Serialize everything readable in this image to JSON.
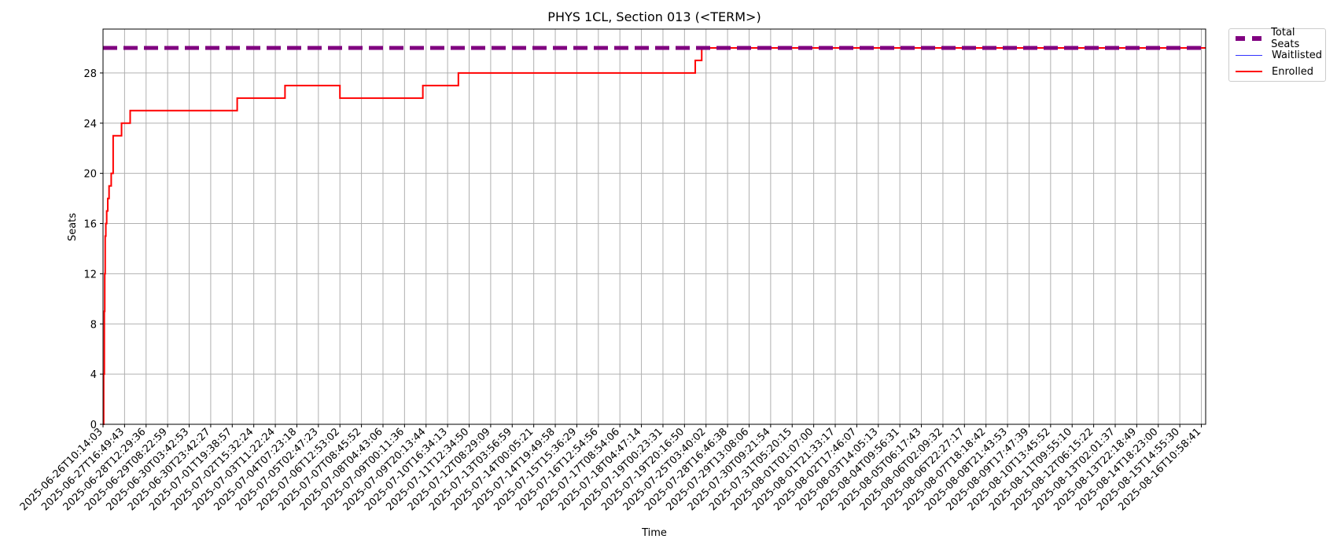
{
  "chart_data": {
    "type": "line",
    "title": "PHYS 1CL, Section 013 (<TERM>)",
    "xlabel": "Time",
    "ylabel": "Seats",
    "ylim": [
      0,
      31.5
    ],
    "yticks": [
      0,
      4,
      8,
      12,
      16,
      20,
      24,
      28
    ],
    "grid": true,
    "legend_position": "outside top-right",
    "x_ticks": [
      "2025-06-26T10:14:03",
      "2025-06-27T16:49:43",
      "2025-06-28T12:29:36",
      "2025-06-29T08:22:59",
      "2025-06-30T03:42:53",
      "2025-06-30T23:42:27",
      "2025-07-01T19:38:57",
      "2025-07-02T15:32:24",
      "2025-07-03T11:22:24",
      "2025-07-04T07:23:18",
      "2025-07-05T02:47:23",
      "2025-07-06T12:53:02",
      "2025-07-07T08:45:52",
      "2025-07-08T04:43:06",
      "2025-07-09T00:11:36",
      "2025-07-09T20:13:44",
      "2025-07-10T16:34:13",
      "2025-07-11T12:34:50",
      "2025-07-12T08:29:09",
      "2025-07-13T03:56:59",
      "2025-07-14T00:05:21",
      "2025-07-14T19:49:58",
      "2025-07-15T15:36:29",
      "2025-07-16T12:54:56",
      "2025-07-17T08:54:06",
      "2025-07-18T04:47:14",
      "2025-07-19T00:23:31",
      "2025-07-19T20:16:50",
      "2025-07-25T03:40:02",
      "2025-07-28T16:46:38",
      "2025-07-29T13:08:06",
      "2025-07-30T09:21:54",
      "2025-07-31T05:20:15",
      "2025-08-01T01:07:00",
      "2025-08-01T21:33:17",
      "2025-08-02T17:46:07",
      "2025-08-03T14:05:13",
      "2025-08-04T09:56:31",
      "2025-08-05T06:17:43",
      "2025-08-06T02:09:32",
      "2025-08-06T22:27:17",
      "2025-08-07T18:18:42",
      "2025-08-08T21:43:53",
      "2025-08-09T17:47:39",
      "2025-08-10T13:45:52",
      "2025-08-11T09:55:10",
      "2025-08-12T06:15:22",
      "2025-08-13T02:01:37",
      "2025-08-13T22:18:49",
      "2025-08-14T18:23:00",
      "2025-08-15T14:55:30",
      "2025-08-16T10:58:41"
    ],
    "series": [
      {
        "name": "Total Seats",
        "color": "#800080",
        "style": "dashed",
        "points": [
          [
            0,
            30
          ],
          [
            51.2,
            30
          ]
        ]
      },
      {
        "name": "Waitlisted",
        "color": "#3333ff",
        "style": "solid",
        "points": [
          [
            0,
            0
          ],
          [
            51.2,
            0
          ]
        ]
      },
      {
        "name": "Enrolled",
        "color": "#ff0000",
        "style": "step",
        "points": [
          [
            0,
            0
          ],
          [
            0.03,
            4
          ],
          [
            0.06,
            9
          ],
          [
            0.08,
            12
          ],
          [
            0.1,
            15
          ],
          [
            0.13,
            16
          ],
          [
            0.17,
            17
          ],
          [
            0.22,
            18
          ],
          [
            0.28,
            19
          ],
          [
            0.38,
            20
          ],
          [
            0.47,
            23
          ],
          [
            0.86,
            24
          ],
          [
            1.26,
            25
          ],
          [
            6.23,
            26
          ],
          [
            8.45,
            27
          ],
          [
            11.0,
            26
          ],
          [
            14.85,
            27
          ],
          [
            16.5,
            28
          ],
          [
            27.5,
            29
          ],
          [
            27.8,
            30
          ],
          [
            51.2,
            30
          ]
        ]
      }
    ]
  }
}
